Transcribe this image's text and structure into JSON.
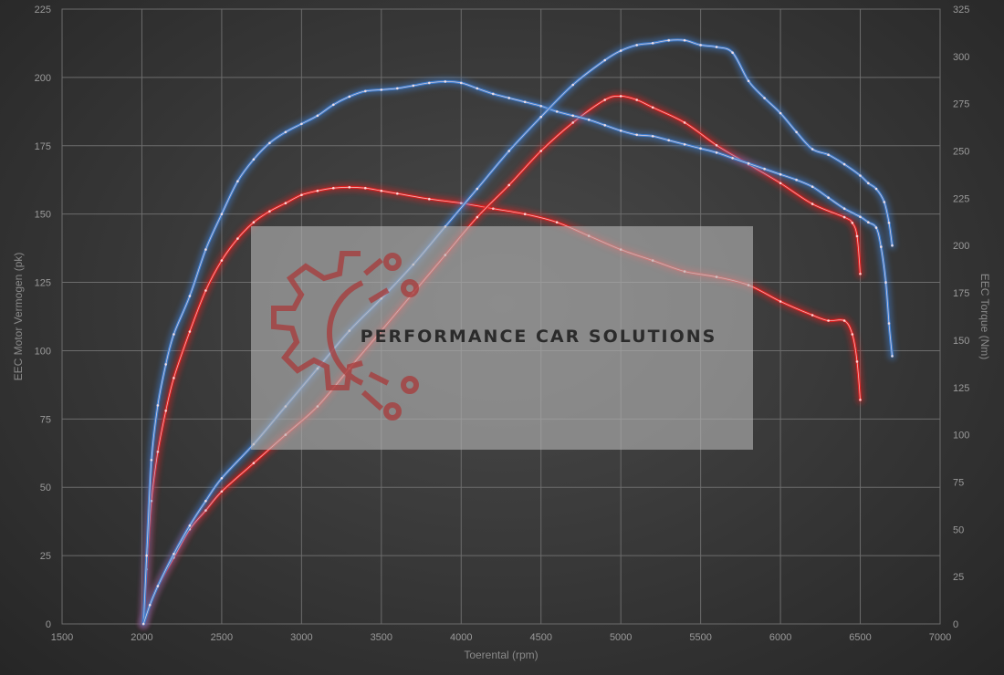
{
  "chart_data": {
    "type": "line",
    "title": "",
    "xlabel": "Toerental (rpm)",
    "ylabel_left": "EEC Motor Vermogen (pk)",
    "ylabel_right": "EEC Torque (Nm)",
    "xlim": [
      1500,
      7000
    ],
    "ylim_left": [
      0,
      225
    ],
    "ylim_right": [
      0,
      325
    ],
    "x_ticks": [
      1500,
      2000,
      2500,
      3000,
      3500,
      4000,
      4500,
      5000,
      5500,
      6000,
      6500,
      7000
    ],
    "y_ticks_left": [
      0,
      25,
      50,
      75,
      100,
      125,
      150,
      175,
      200,
      225
    ],
    "y_ticks_right": [
      0,
      25,
      50,
      75,
      100,
      125,
      150,
      175,
      200,
      225,
      250,
      275,
      300,
      325
    ],
    "grid": true,
    "series_colors": {
      "red": "#e02020",
      "blue": "#3f7fd0"
    },
    "series": [
      {
        "color": "red",
        "axis": "left",
        "x": [
          2010,
          2030,
          2060,
          2100,
          2150,
          2200,
          2300,
          2400,
          2500,
          2600,
          2700,
          2800,
          2900,
          3000,
          3100,
          3200,
          3300,
          3400,
          3500,
          3600,
          3800,
          4000,
          4200,
          4400,
          4600,
          4800,
          5000,
          5200,
          5400,
          5600,
          5800,
          6000,
          6200,
          6300,
          6400,
          6450,
          6480,
          6500
        ],
        "values": [
          0,
          20,
          45,
          63,
          78,
          90,
          107,
          122,
          133,
          141,
          147,
          151,
          154,
          157,
          158.5,
          159.5,
          159.8,
          159.5,
          158.5,
          157.5,
          155.5,
          154,
          152,
          150,
          147,
          142,
          137,
          133,
          129,
          127,
          124,
          118,
          113,
          111,
          111,
          106,
          96,
          82
        ]
      },
      {
        "color": "red",
        "axis": "right",
        "x": [
          2010,
          2050,
          2100,
          2200,
          2300,
          2400,
          2500,
          2700,
          2900,
          3100,
          3300,
          3500,
          3700,
          3900,
          4100,
          4300,
          4500,
          4700,
          4900,
          5000,
          5100,
          5200,
          5400,
          5600,
          5800,
          6000,
          6200,
          6400,
          6450,
          6480,
          6500
        ],
        "values": [
          0,
          10,
          20,
          35,
          50,
          60,
          70,
          85,
          100,
          115,
          135,
          155,
          175,
          195,
          215,
          232,
          250,
          265,
          277,
          279,
          277,
          273,
          265,
          253,
          243,
          233,
          222,
          215,
          212,
          205,
          185
        ]
      },
      {
        "color": "blue",
        "axis": "left",
        "x": [
          2010,
          2030,
          2060,
          2100,
          2150,
          2200,
          2300,
          2400,
          2500,
          2600,
          2700,
          2800,
          2900,
          3000,
          3100,
          3200,
          3300,
          3400,
          3500,
          3600,
          3700,
          3800,
          3900,
          4000,
          4100,
          4200,
          4300,
          4400,
          4500,
          4600,
          4700,
          4800,
          4900,
          5000,
          5100,
          5200,
          5300,
          5400,
          5500,
          5600,
          5700,
          5800,
          5900,
          6000,
          6100,
          6200,
          6300,
          6400,
          6500,
          6550,
          6600,
          6630,
          6660,
          6680,
          6700
        ],
        "values": [
          0,
          25,
          60,
          80,
          95,
          106,
          120,
          137,
          150,
          162,
          170,
          176,
          180,
          183,
          186,
          190,
          193,
          195,
          195.5,
          196,
          197,
          198,
          198.5,
          198,
          196,
          194,
          192.5,
          191,
          189.5,
          187.5,
          186,
          184.5,
          182.5,
          180.5,
          179,
          178.5,
          177,
          175.5,
          174,
          172.5,
          170.5,
          168.5,
          166.5,
          164.5,
          162.5,
          160,
          156,
          152,
          149,
          147,
          145,
          138,
          125,
          110,
          98
        ]
      },
      {
        "color": "blue",
        "axis": "right",
        "x": [
          2010,
          2050,
          2100,
          2200,
          2300,
          2400,
          2500,
          2700,
          2900,
          3100,
          3300,
          3500,
          3700,
          3900,
          4100,
          4300,
          4500,
          4700,
          4900,
          5000,
          5100,
          5200,
          5300,
          5400,
          5500,
          5600,
          5700,
          5800,
          5900,
          6000,
          6100,
          6200,
          6300,
          6400,
          6500,
          6550,
          6600,
          6650,
          6680,
          6700
        ],
        "values": [
          0,
          10,
          20,
          37,
          52,
          65,
          77,
          95,
          115,
          135,
          155,
          172,
          190,
          210,
          230,
          250,
          268,
          285,
          298,
          303,
          306,
          307,
          308.5,
          308.5,
          306,
          305,
          302,
          287,
          278,
          270,
          260,
          251,
          248,
          243,
          237,
          233,
          230,
          223,
          212,
          200
        ]
      }
    ],
    "watermark": {
      "text": "PERFORMANCE CAR SOLUTIONS",
      "logo": "gear-circuit-logo"
    }
  }
}
